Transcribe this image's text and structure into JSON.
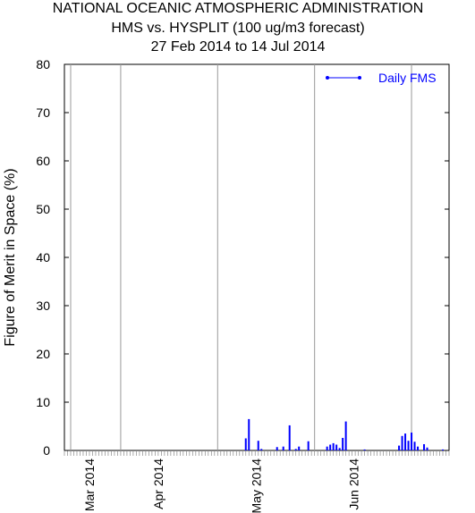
{
  "chart_data": {
    "type": "bar",
    "title": "NATIONAL OCEANIC ATMOSPHERIC ADMINISTRATION",
    "subtitle": "HMS vs. HYSPLIT (100 ug/m3 forecast)",
    "date_range": "27 Feb 2014 to 14 Jul 2014",
    "y_label": "Figure of Merit in Space (%)",
    "x": [
      58,
      59,
      62,
      63,
      68,
      70,
      72,
      74,
      75,
      78,
      84,
      85,
      86,
      87,
      88,
      89,
      90,
      96,
      107,
      108,
      109,
      110,
      111,
      112,
      113,
      115,
      116,
      121
    ],
    "series": [
      {
        "name": "Daily FMS",
        "color": "#0000ff",
        "values": [
          2.5,
          6.5,
          2.0,
          0.3,
          0.7,
          0.8,
          5.2,
          0.3,
          0.8,
          1.9,
          0.8,
          1.2,
          1.5,
          1.2,
          0.5,
          2.6,
          6.0,
          0.2,
          1.0,
          3.0,
          3.5,
          2.0,
          3.7,
          1.8,
          0.8,
          1.3,
          0.6,
          0.2
        ]
      }
    ],
    "xlim": [
      0,
      123
    ],
    "xticks": [
      {
        "value": 8,
        "label": "Mar 2014"
      },
      {
        "value": 30,
        "label": "Apr 2014"
      },
      {
        "value": 61.4,
        "label": "May 2014"
      },
      {
        "value": 92.6,
        "label": "Jun 2014"
      }
    ],
    "xgrid": [
      2,
      18,
      49,
      80,
      111
    ],
    "ylim": [
      0,
      80
    ],
    "yticks": [
      0,
      10,
      20,
      30,
      40,
      50,
      60,
      70,
      80
    ],
    "legend": "upper right"
  }
}
